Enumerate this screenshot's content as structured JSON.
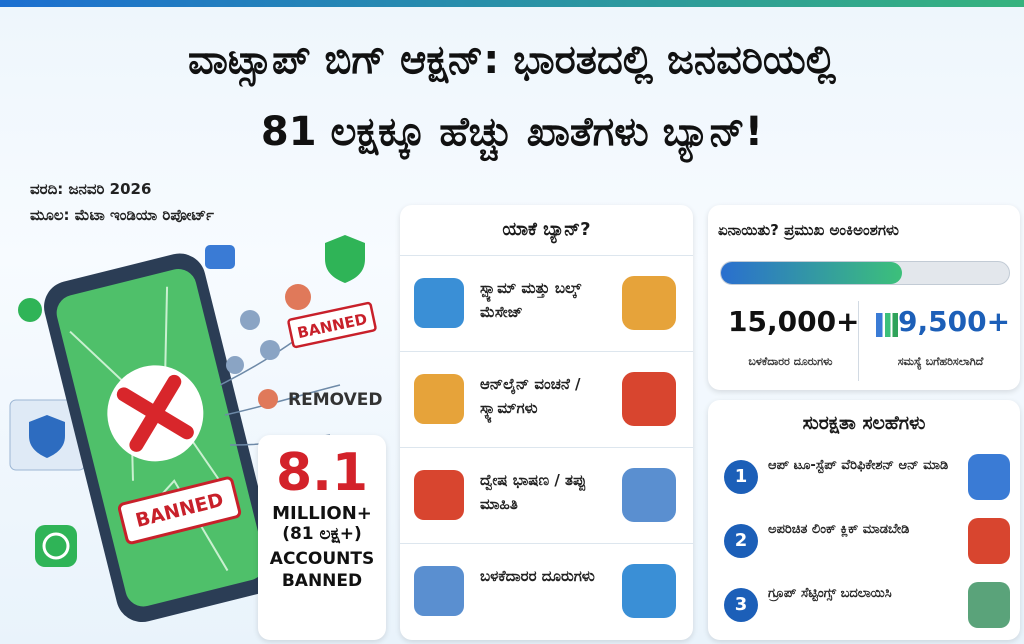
{
  "header": {
    "title_line1": "ವಾಟ್ಸಾಪ್ ಬಿಗ್ ಆಕ್ಷನ್: ಭಾರತದಲ್ಲಿ ಜನವರಿಯಲ್ಲಿ",
    "title_line2": "81 ಲಕ್ಷಕ್ಕೂ ಹೆಚ್ಚು ಖಾತೆಗಳು ಬ್ಯಾನ್!",
    "report": "ವರದಿ: ಜನವರಿ 2026",
    "source": "ಮೂಲ: ಮೆಟಾ ಇಂಡಿಯಾ ರಿಪೋರ್ಟ್"
  },
  "illustration": {
    "stamp": "BANNED",
    "removed": "REMOVED",
    "phone_label": "BANNED"
  },
  "headline_stat": {
    "number": "8.1",
    "unit": "MILLION+",
    "local": "(81 ಲಕ್ಷ+)",
    "caption": "ACCOUNTS BANNED"
  },
  "reasons": {
    "title": "ಯಾಕೆ ಬ್ಯಾನ್?",
    "items": [
      "ಸ್ಪ್ಯಾಮ್ ಮತ್ತು ಬಲ್ಕ್ ಮೆಸೇಜ್",
      "ಆನ್‌ಲೈನ್ ವಂಚನೆ / ಸ್ಕ್ಯಾಮ್‌ಗಳು",
      "ದ್ವೇಷ ಭಾಷಣ / ತಪ್ಪು ಮಾಹಿತಿ",
      "ಬಳಕೆದಾರರ ದೂರುಗಳು"
    ]
  },
  "key_stats": {
    "title": "ಏನಾಯಿತು? ಪ್ರಮುಖ ಅಂಕಿಅಂಶಗಳು",
    "stats": [
      {
        "value": "15,000+",
        "label": "ಬಳಕೆದಾರರ ದೂರುಗಳು"
      },
      {
        "value": "9,500+",
        "label": "ಸಮಸ್ಯೆ ಬಗೆಹರಿಸಲಾಗಿದೆ"
      }
    ]
  },
  "tips": {
    "title": "ಸುರಕ್ಷತಾ ಸಲಹೆಗಳು",
    "items": [
      {
        "number": 1,
        "text": "ಆಪ್ ಟೂ-ಸ್ಟೆಪ್ ವೆರಿಫಿಕೇಶನ್ ಆನ್ ಮಾಡಿ"
      },
      {
        "number": 2,
        "text": "ಅಪರಿಚಿತ ಲಿಂಕ್ ಕ್ಲಿಕ್ ಮಾಡಬೇಡಿ"
      },
      {
        "number": 3,
        "text": "ಗ್ರೂಪ್ ಸೆಟ್ಟಿಂಗ್ಸ್ ಬದಲಾಯಿಸಿ"
      }
    ]
  }
}
